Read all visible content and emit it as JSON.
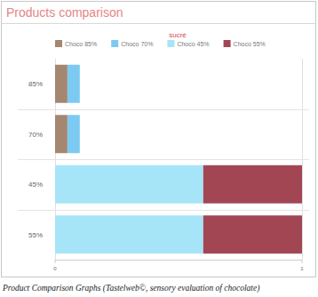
{
  "chart_data": {
    "type": "bar",
    "orientation": "horizontal",
    "stacked": true,
    "title": "Products comparison",
    "subtitle": "sucré",
    "caption": "Product Comparison Graphs (Tastelweb©, sensory evaluation of chocolate)",
    "categories": [
      "85%",
      "70%",
      "45%",
      "55%"
    ],
    "series": [
      {
        "name": "Choco 85%",
        "color": "#a58670",
        "values": [
          0.05,
          0.05,
          0,
          0
        ]
      },
      {
        "name": "Choco 70%",
        "color": "#7ccaf2",
        "values": [
          0.05,
          0.05,
          0,
          0
        ]
      },
      {
        "name": "Choco 45%",
        "color": "#a6e5f8",
        "values": [
          0,
          0,
          0.6,
          0.6
        ]
      },
      {
        "name": "Choco 55%",
        "color": "#a34654",
        "values": [
          0,
          0,
          0.4,
          0.4
        ]
      }
    ],
    "xlim": [
      0,
      1
    ],
    "xticks": [
      0,
      1
    ],
    "grid": true,
    "legend": "top"
  }
}
